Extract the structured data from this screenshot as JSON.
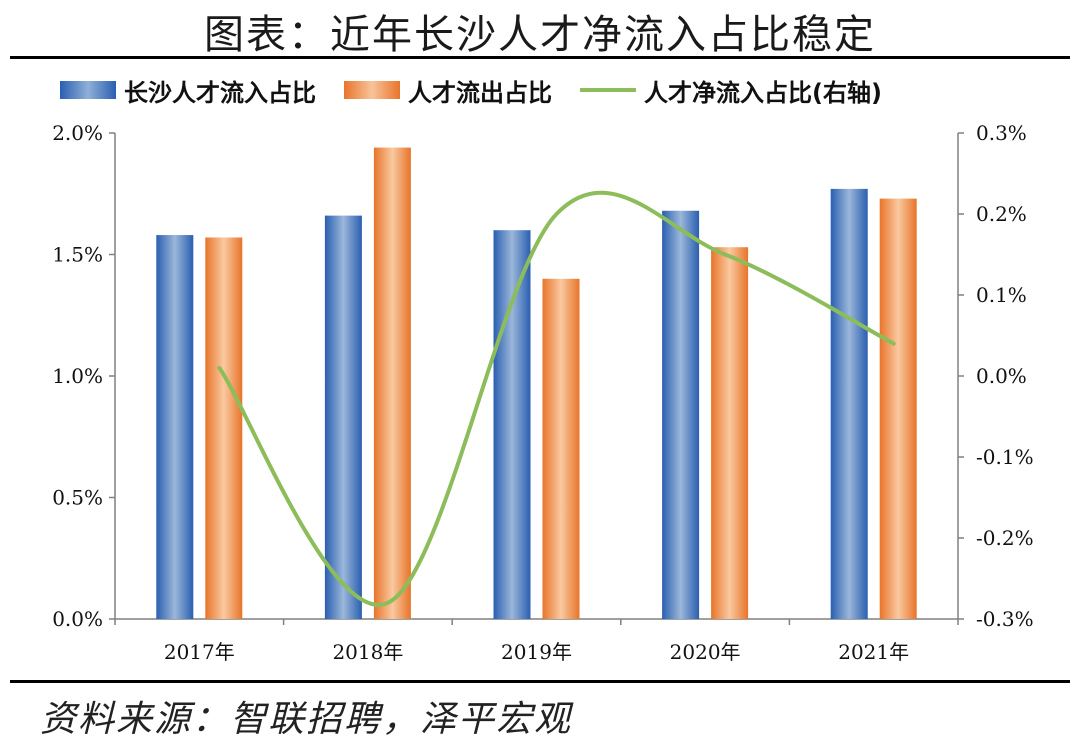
{
  "header": {
    "title": "图表：近年长沙人才净流入占比稳定"
  },
  "footer": {
    "source": "资料来源：智联招聘，泽平宏观"
  },
  "chart_data": {
    "type": "bar",
    "title": "图表：近年长沙人才净流入占比稳定",
    "categories": [
      "2017年",
      "2018年",
      "2019年",
      "2020年",
      "2021年"
    ],
    "series": [
      {
        "name": "长沙人才流入占比",
        "type": "bar",
        "axis": "left",
        "values": [
          1.58,
          1.66,
          1.6,
          1.68,
          1.77
        ],
        "color": "#3a72c0"
      },
      {
        "name": "人才流出占比",
        "type": "bar",
        "axis": "left",
        "values": [
          1.57,
          1.94,
          1.4,
          1.53,
          1.73
        ],
        "color": "#ee8a45"
      },
      {
        "name": "人才净流入占比(右轴)",
        "type": "line",
        "axis": "right",
        "values": [
          0.01,
          -0.28,
          0.2,
          0.15,
          0.04
        ],
        "color": "#8cbd5a"
      }
    ],
    "y_left": {
      "min": 0.0,
      "max": 2.0,
      "ticks": [
        "0.0%",
        "0.5%",
        "1.0%",
        "1.5%",
        "2.0%"
      ]
    },
    "y_right": {
      "min": -0.3,
      "max": 0.3,
      "ticks": [
        "-0.3%",
        "-0.2%",
        "-0.1%",
        "0.0%",
        "0.1%",
        "0.2%",
        "0.3%"
      ]
    },
    "legend_position": "top",
    "grid": false
  }
}
